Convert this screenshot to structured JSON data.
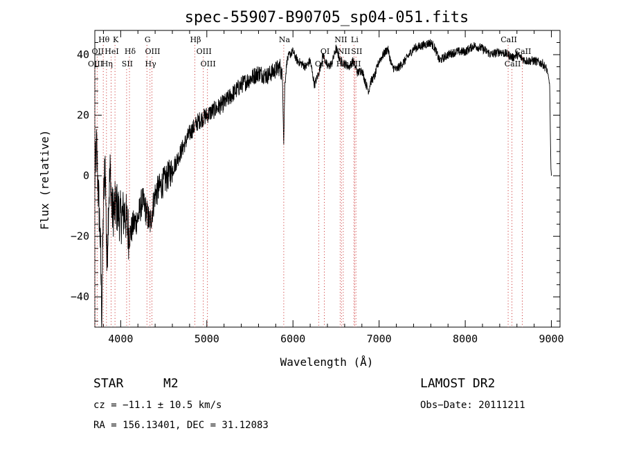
{
  "chart_data": {
    "type": "line",
    "title": "spec-55907-B90705_sp04-051.fits",
    "xlabel": "Wavelength (Å)",
    "ylabel": "Flux (relative)",
    "xlim": [
      3700,
      9100
    ],
    "ylim": [
      -50,
      48
    ],
    "x_ticks": [
      4000,
      5000,
      6000,
      7000,
      8000,
      9000
    ],
    "x_tick_labels": [
      "4000",
      "5000",
      "6000",
      "7000",
      "8000",
      "9000"
    ],
    "y_ticks": [
      -40,
      -20,
      0,
      20,
      40
    ],
    "y_tick_labels": [
      "−40",
      "−20",
      "0",
      "20",
      "40"
    ],
    "grid": false,
    "line_color": "#000000",
    "series": [
      {
        "x": [
          3700,
          3720,
          3740,
          3760,
          3780,
          3800,
          3820,
          3840,
          3860,
          3880,
          3900,
          3950,
          4000,
          4050,
          4100,
          4150,
          4200,
          4250,
          4300,
          4340,
          4400,
          4450,
          4500,
          4600,
          4700,
          4800,
          4900,
          5000,
          5100,
          5200,
          5300,
          5400,
          5500,
          5600,
          5700,
          5800,
          5850,
          5880,
          5893,
          5905,
          5930,
          5960,
          6000,
          6050,
          6100,
          6150,
          6200,
          6250,
          6300,
          6350,
          6400,
          6450,
          6500,
          6550,
          6600,
          6650,
          6700,
          6750,
          6800,
          6850,
          6880,
          6900,
          6950,
          7000,
          7050,
          7100,
          7150,
          7200,
          7300,
          7400,
          7500,
          7600,
          7650,
          7700,
          7750,
          7800,
          7900,
          8000,
          8100,
          8200,
          8300,
          8400,
          8500,
          8550,
          8600,
          8650,
          8700,
          8800,
          8900,
          8950,
          8980,
          8990,
          8995,
          9000
        ],
        "y": [
          -2,
          10,
          -5,
          -18,
          -45,
          -10,
          5,
          -30,
          -8,
          2,
          -12,
          -10,
          -14,
          -12,
          -20,
          -16,
          -14,
          -8,
          -12,
          -16,
          -6,
          -4,
          -2,
          2,
          8,
          14,
          18,
          20,
          22,
          24,
          27,
          30,
          32,
          34,
          33,
          35,
          36,
          32,
          10,
          30,
          38,
          40,
          41,
          38,
          37,
          36,
          38,
          30,
          34,
          40,
          36,
          37,
          42,
          38,
          37,
          36,
          38,
          34,
          35,
          30,
          28,
          31,
          33,
          38,
          40,
          42,
          36,
          35,
          38,
          42,
          43,
          44,
          42,
          38,
          39,
          40,
          41,
          41,
          43,
          42,
          40,
          41,
          40,
          39,
          40,
          39,
          38,
          38,
          37,
          35,
          30,
          10,
          2,
          0
        ]
      }
    ],
    "line_ids": [
      {
        "label": "Hθ",
        "x": 3798,
        "row": 1
      },
      {
        "label": "K",
        "x": 3934,
        "row": 1
      },
      {
        "label": "G",
        "x": 4305,
        "row": 1
      },
      {
        "label": "Hβ",
        "x": 4861,
        "row": 1
      },
      {
        "label": "Na",
        "x": 5893,
        "row": 1
      },
      {
        "label": "NII",
        "x": 6548,
        "row": 1
      },
      {
        "label": "Li",
        "x": 6708,
        "row": 1
      },
      {
        "label": "CaII",
        "x": 8498,
        "row": 1
      },
      {
        "label": "OII",
        "x": 3727,
        "row": 2
      },
      {
        "label": "HeI",
        "x": 3889,
        "row": 2
      },
      {
        "label": "Hδ",
        "x": 4102,
        "row": 2
      },
      {
        "label": "OIII",
        "x": 4363,
        "row": 2
      },
      {
        "label": "OIII",
        "x": 4959,
        "row": 2
      },
      {
        "label": "OI",
        "x": 6364,
        "row": 2
      },
      {
        "label": "NII",
        "x": 6584,
        "row": 2
      },
      {
        "label": "SII",
        "x": 6731,
        "row": 2
      },
      {
        "label": "CaII",
        "x": 8662,
        "row": 2
      },
      {
        "label": "OIII",
        "x": 3700,
        "row": 3
      },
      {
        "label": "Hη",
        "x": 3835,
        "row": 3
      },
      {
        "label": "SII",
        "x": 4069,
        "row": 3
      },
      {
        "label": "Hγ",
        "x": 4340,
        "row": 3
      },
      {
        "label": "OIII",
        "x": 5007,
        "row": 3
      },
      {
        "label": "OI",
        "x": 6300,
        "row": 3
      },
      {
        "label": "Hα",
        "x": 6563,
        "row": 3
      },
      {
        "label": "SII",
        "x": 6716,
        "row": 3
      },
      {
        "label": "CaII",
        "x": 8542,
        "row": 3
      }
    ]
  },
  "footer": {
    "object_class": "STAR",
    "subclass": "M2",
    "survey": "LAMOST DR2",
    "redshift": "cz = −11.1 ± 10.5 km/s",
    "obs_date": "Obs−Date: 20111211",
    "coords": "RA = 156.13401, DEC =  31.12083"
  }
}
